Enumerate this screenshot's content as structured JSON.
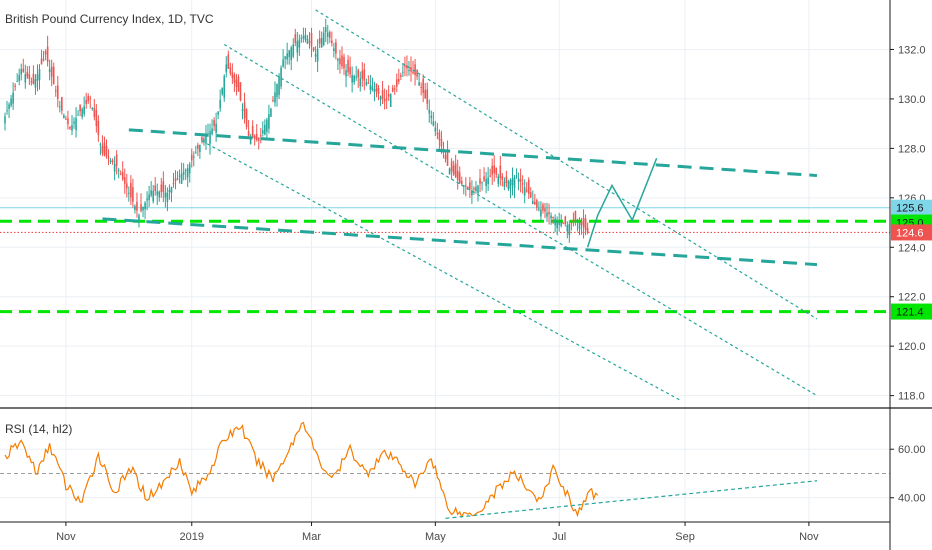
{
  "chart_data": [
    {
      "type": "candlestick",
      "title": "British Pound Currency Index, 1D, TVC",
      "ylim": [
        117.5,
        134.0
      ],
      "y_ticks": [
        118.0,
        120.0,
        122.0,
        124.0,
        126.0,
        128.0,
        130.0,
        132.0
      ],
      "x_ticks": [
        "Nov",
        "2019",
        "Mar",
        "May",
        "Jul",
        "Sep",
        "Nov"
      ],
      "x_tick_days": [
        30,
        92,
        151,
        212,
        273,
        335,
        396
      ],
      "grid": true,
      "colors": {
        "up": "#26a69a",
        "down": "#ef5350",
        "support": "#00e600",
        "trend": "#26a69a",
        "projection": "#26a69a",
        "cyan_line": "#7fd6e8",
        "price_line": "#e53935"
      },
      "anchors": [
        [
          0,
          129.3
        ],
        [
          8,
          131.2
        ],
        [
          14,
          130.6
        ],
        [
          20,
          131.8
        ],
        [
          27,
          129.7
        ],
        [
          32,
          128.8
        ],
        [
          37,
          129.5
        ],
        [
          42,
          130.0
        ],
        [
          48,
          127.8
        ],
        [
          55,
          127.3
        ],
        [
          61,
          126.2
        ],
        [
          66,
          125.3
        ],
        [
          72,
          126.3
        ],
        [
          80,
          126.2
        ],
        [
          86,
          126.9
        ],
        [
          90,
          127.2
        ],
        [
          97,
          128.3
        ],
        [
          104,
          129.0
        ],
        [
          109,
          131.4
        ],
        [
          115,
          130.3
        ],
        [
          120,
          128.5
        ],
        [
          125,
          128.3
        ],
        [
          131,
          129.6
        ],
        [
          137,
          131.6
        ],
        [
          142,
          132.2
        ],
        [
          148,
          132.6
        ],
        [
          153,
          131.8
        ],
        [
          158,
          132.9
        ],
        [
          165,
          131.4
        ],
        [
          170,
          131.0
        ],
        [
          176,
          130.8
        ],
        [
          181,
          130.5
        ],
        [
          187,
          129.9
        ],
        [
          193,
          130.5
        ],
        [
          197,
          131.3
        ],
        [
          203,
          130.9
        ],
        [
          208,
          129.8
        ],
        [
          213,
          128.6
        ],
        [
          218,
          127.3
        ],
        [
          224,
          126.6
        ],
        [
          230,
          126.3
        ],
        [
          236,
          126.7
        ],
        [
          241,
          127.0
        ],
        [
          247,
          126.6
        ],
        [
          252,
          126.9
        ],
        [
          257,
          126.3
        ],
        [
          262,
          125.6
        ],
        [
          267,
          125.4
        ],
        [
          272,
          125.1
        ],
        [
          277,
          124.9
        ],
        [
          282,
          125.1
        ],
        [
          287,
          124.6
        ]
      ],
      "price_tags": [
        {
          "label": "125.6",
          "value": 125.6,
          "color": "#7fd6e8",
          "text_color": "#1a1a1a"
        },
        {
          "label": "125.0",
          "value": 125.0,
          "color": "#00e600",
          "text_color": "#1a1a1a"
        },
        {
          "label": "124.6",
          "value": 124.6,
          "color": "#ef5350",
          "text_color": "#ffffff"
        },
        {
          "label": "121.4",
          "value": 121.4,
          "color": "#00e600",
          "text_color": "#1a1a1a"
        }
      ],
      "horizontal_lines": [
        {
          "name": "cyan-level",
          "value": 125.6,
          "style": "solid",
          "color": "#7fd6e8"
        },
        {
          "name": "green-support-125",
          "value": 125.05,
          "style": "dashed",
          "color": "#00e600"
        },
        {
          "name": "green-support-121",
          "value": 121.4,
          "style": "dashed",
          "color": "#00e600"
        },
        {
          "name": "current-price",
          "value": 124.6,
          "style": "dotted",
          "color": "#e53935"
        }
      ],
      "trend_lines": [
        {
          "name": "upper-wedge-line",
          "points": [
            [
              61,
              128.75
            ],
            [
              400,
              126.9
            ]
          ],
          "style": "dashed-thick"
        },
        {
          "name": "lower-wedge-line",
          "points": [
            [
              48,
              125.15
            ],
            [
              400,
              123.3
            ]
          ],
          "style": "dashed-thick"
        },
        {
          "name": "channel-upper",
          "points": [
            [
              153,
              133.6
            ],
            [
              400,
              121.1
            ]
          ],
          "style": "dotted"
        },
        {
          "name": "channel-middle",
          "points": [
            [
              108,
              132.2
            ],
            [
              400,
              118.0
            ]
          ],
          "style": "dotted"
        },
        {
          "name": "channel-lower",
          "points": [
            [
              97,
              128.3
            ],
            [
              333,
              117.8
            ]
          ],
          "style": "dotted"
        }
      ],
      "projection": [
        [
          287,
          124.0
        ],
        [
          292,
          125.3
        ],
        [
          299,
          126.5
        ],
        [
          309,
          125.1
        ],
        [
          321,
          127.6
        ]
      ]
    },
    {
      "type": "line",
      "title": "RSI (14, hl2)",
      "ylim": [
        30,
        77
      ],
      "y_ticks": [
        40.0,
        60.0
      ],
      "midline": 50,
      "anchors": [
        [
          0,
          57
        ],
        [
          8,
          63
        ],
        [
          16,
          50
        ],
        [
          22,
          62
        ],
        [
          30,
          45
        ],
        [
          38,
          38
        ],
        [
          46,
          58
        ],
        [
          54,
          42
        ],
        [
          62,
          52
        ],
        [
          70,
          40
        ],
        [
          78,
          46
        ],
        [
          86,
          56
        ],
        [
          92,
          42
        ],
        [
          100,
          50
        ],
        [
          108,
          64
        ],
        [
          116,
          70
        ],
        [
          124,
          55
        ],
        [
          132,
          48
        ],
        [
          140,
          60
        ],
        [
          147,
          72
        ],
        [
          155,
          54
        ],
        [
          162,
          48
        ],
        [
          170,
          60
        ],
        [
          178,
          50
        ],
        [
          186,
          58
        ],
        [
          194,
          55
        ],
        [
          202,
          45
        ],
        [
          210,
          57
        ],
        [
          218,
          36
        ],
        [
          226,
          33
        ],
        [
          234,
          35
        ],
        [
          242,
          43
        ],
        [
          250,
          50
        ],
        [
          258,
          44
        ],
        [
          264,
          38
        ],
        [
          270,
          52
        ],
        [
          276,
          43
        ],
        [
          282,
          33
        ],
        [
          288,
          42
        ],
        [
          292,
          41
        ]
      ],
      "trend_line": [
        [
          217,
          31.5
        ],
        [
          400,
          47
        ]
      ]
    }
  ]
}
